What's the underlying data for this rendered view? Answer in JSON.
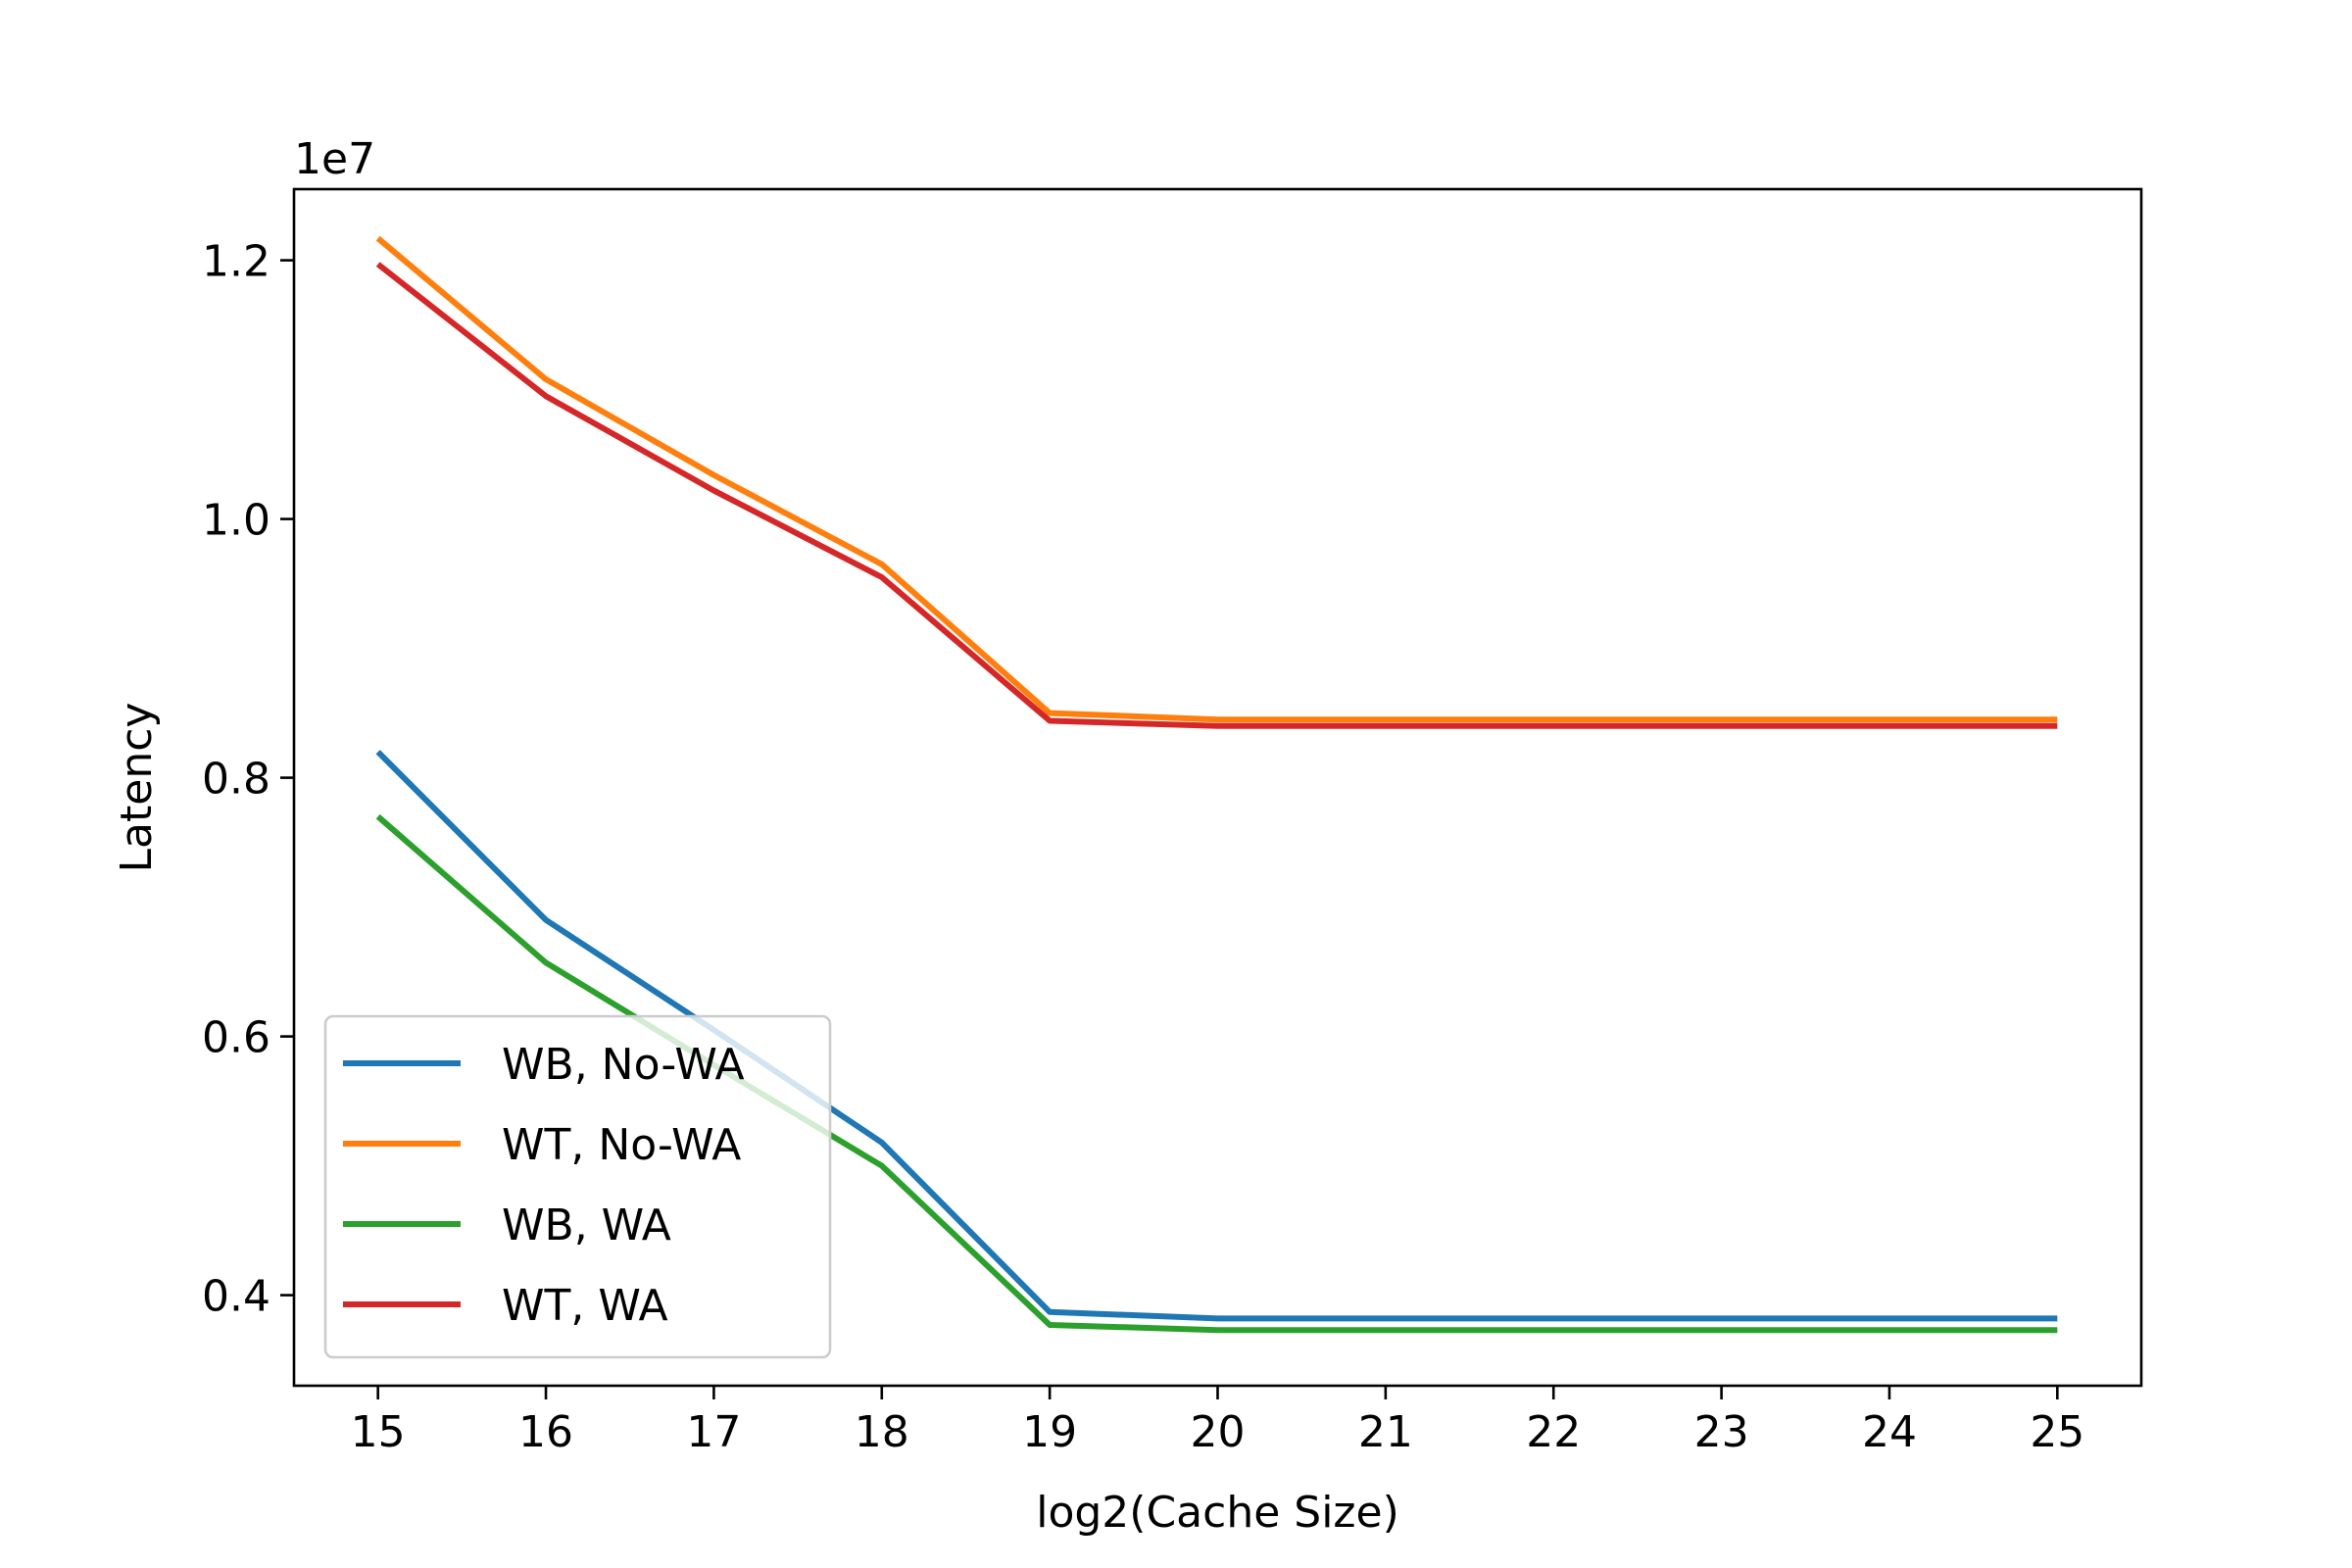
{
  "chart_data": {
    "type": "line",
    "title": "",
    "xlabel": "log2(Cache Size)",
    "ylabel": "Latency",
    "y_offset_label": "1e7",
    "x": [
      15,
      16,
      17,
      18,
      19,
      20,
      21,
      22,
      23,
      24,
      25
    ],
    "xlim": [
      14.5,
      25.5
    ],
    "ylim": [
      0.33,
      1.255
    ],
    "y_scale": 10000000,
    "x_ticks": [
      15,
      16,
      17,
      18,
      19,
      20,
      21,
      22,
      23,
      24,
      25
    ],
    "y_ticks": [
      0.4,
      0.6,
      0.8,
      1.0,
      1.2
    ],
    "y_tick_labels": [
      "0.4",
      "0.6",
      "0.8",
      "1.0",
      "1.2"
    ],
    "grid": false,
    "legend_position": "lower-left",
    "series": [
      {
        "name": "WB, No-WA",
        "color": "#1f77b4",
        "values": [
          0.82,
          0.69,
          0.605,
          0.518,
          0.387,
          0.382,
          0.382,
          0.382,
          0.382,
          0.382,
          0.382
        ]
      },
      {
        "name": "WT, No-WA",
        "color": "#ff7f0e",
        "values": [
          1.217,
          1.108,
          1.034,
          0.965,
          0.85,
          0.845,
          0.845,
          0.845,
          0.845,
          0.845,
          0.845
        ]
      },
      {
        "name": "WB, WA",
        "color": "#2ca02c",
        "values": [
          0.77,
          0.657,
          0.578,
          0.5,
          0.377,
          0.373,
          0.373,
          0.373,
          0.373,
          0.373,
          0.373
        ]
      },
      {
        "name": "WT, WA",
        "color": "#d62728",
        "values": [
          1.197,
          1.095,
          1.022,
          0.955,
          0.844,
          0.84,
          0.84,
          0.84,
          0.84,
          0.84,
          0.84
        ]
      }
    ]
  }
}
